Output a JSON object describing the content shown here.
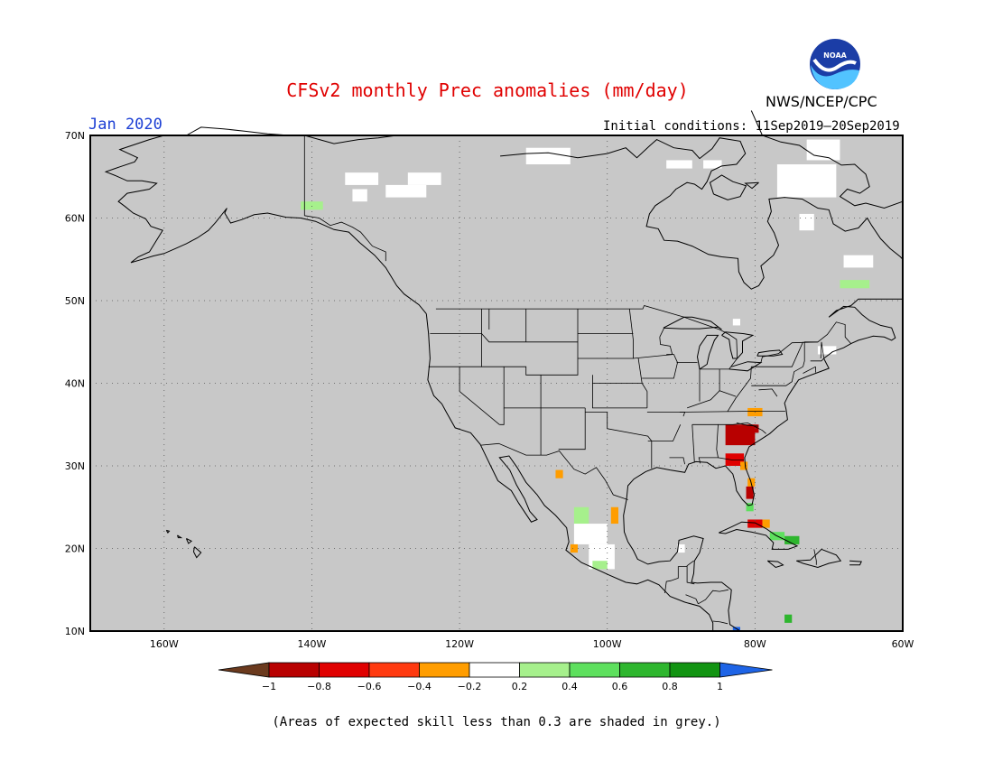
{
  "title": "CFSv2 monthly Prec anomalies (mm/day)",
  "month": "Jan 2020",
  "agency": "NWS/NCEP/CPC",
  "initial_conditions": "Initial conditions: 11Sep2019–20Sep2019",
  "footnote": "(Areas of expected skill less than 0.3 are shaded in grey.)",
  "logo_text": "NOAA",
  "map": {
    "lon_range": [
      -170,
      -60
    ],
    "lat_range": [
      10,
      70
    ],
    "background_color": "#c8c8c8",
    "grid": "dotted",
    "lat_ticks": [
      {
        "value": 70,
        "label": "70N"
      },
      {
        "value": 60,
        "label": "60N"
      },
      {
        "value": 50,
        "label": "50N"
      },
      {
        "value": 40,
        "label": "40N"
      },
      {
        "value": 30,
        "label": "30N"
      },
      {
        "value": 20,
        "label": "20N"
      },
      {
        "value": 10,
        "label": "10N"
      }
    ],
    "lon_ticks": [
      {
        "value": -160,
        "label": "160W"
      },
      {
        "value": -140,
        "label": "140W"
      },
      {
        "value": -120,
        "label": "120W"
      },
      {
        "value": -100,
        "label": "100W"
      },
      {
        "value": -80,
        "label": "80W"
      },
      {
        "value": -60,
        "label": "60W"
      }
    ]
  },
  "colorbar": {
    "labels": [
      "−1",
      "−0.8",
      "−0.6",
      "−0.4",
      "−0.2",
      "0.2",
      "0.4",
      "0.6",
      "0.8",
      "1"
    ],
    "colors": [
      "#6b3a1e",
      "#b80000",
      "#e00000",
      "#ff3a10",
      "#ff9d00",
      "#ffffff",
      "#a6f08c",
      "#5ee05e",
      "#2eb62e",
      "#129412",
      "#1e64e6"
    ]
  },
  "anomaly_cells": [
    {
      "lon": -135.5,
      "lat": 64.0,
      "w": 4.5,
      "h": 1.5,
      "color": "#ffffff"
    },
    {
      "lon": -134.5,
      "lat": 62.0,
      "w": 2.0,
      "h": 1.5,
      "color": "#ffffff"
    },
    {
      "lon": -127.0,
      "lat": 64.0,
      "w": 4.5,
      "h": 1.5,
      "color": "#ffffff"
    },
    {
      "lon": -130.0,
      "lat": 62.5,
      "w": 5.5,
      "h": 1.5,
      "color": "#ffffff"
    },
    {
      "lon": -111.0,
      "lat": 66.5,
      "w": 6.0,
      "h": 2.0,
      "color": "#ffffff"
    },
    {
      "lon": -92.0,
      "lat": 66.0,
      "w": 3.5,
      "h": 1.0,
      "color": "#ffffff"
    },
    {
      "lon": -87.0,
      "lat": 66.0,
      "w": 2.5,
      "h": 1.0,
      "color": "#ffffff"
    },
    {
      "lon": -77.0,
      "lat": 62.5,
      "w": 8.0,
      "h": 4.0,
      "color": "#ffffff"
    },
    {
      "lon": -73.0,
      "lat": 67.0,
      "w": 4.5,
      "h": 2.5,
      "color": "#ffffff"
    },
    {
      "lon": -74.0,
      "lat": 58.5,
      "w": 2.0,
      "h": 2.0,
      "color": "#ffffff"
    },
    {
      "lon": -68.0,
      "lat": 54.0,
      "w": 4.0,
      "h": 1.5,
      "color": "#ffffff"
    },
    {
      "lon": -71.5,
      "lat": 43.5,
      "w": 2.5,
      "h": 1.0,
      "color": "#ffffff"
    },
    {
      "lon": -83.0,
      "lat": 47.0,
      "w": 1.0,
      "h": 0.8,
      "color": "#ffffff"
    },
    {
      "lon": -141.5,
      "lat": 61.0,
      "w": 3.0,
      "h": 1.0,
      "color": "#a6f08c"
    },
    {
      "lon": -68.5,
      "lat": 51.5,
      "w": 4.0,
      "h": 1.0,
      "color": "#a6f08c"
    },
    {
      "lon": -81.0,
      "lat": 36.0,
      "w": 2.0,
      "h": 1.0,
      "color": "#ff9d00"
    },
    {
      "lon": -84.0,
      "lat": 32.5,
      "w": 4.0,
      "h": 2.5,
      "color": "#b80000"
    },
    {
      "lon": -81.5,
      "lat": 34.0,
      "w": 2.0,
      "h": 1.0,
      "color": "#b80000"
    },
    {
      "lon": -84.0,
      "lat": 30.0,
      "w": 2.5,
      "h": 1.5,
      "color": "#e00000"
    },
    {
      "lon": -82.0,
      "lat": 29.5,
      "w": 1.0,
      "h": 1.0,
      "color": "#ff9d00"
    },
    {
      "lon": -81.0,
      "lat": 27.5,
      "w": 1.0,
      "h": 1.0,
      "color": "#ff9d00"
    },
    {
      "lon": -81.2,
      "lat": 26.0,
      "w": 1.0,
      "h": 1.5,
      "color": "#b80000"
    },
    {
      "lon": -81.2,
      "lat": 24.5,
      "w": 1.0,
      "h": 1.0,
      "color": "#5ee05e"
    },
    {
      "lon": -81.0,
      "lat": 22.5,
      "w": 2.0,
      "h": 1.0,
      "color": "#e00000"
    },
    {
      "lon": -79.0,
      "lat": 22.5,
      "w": 1.0,
      "h": 1.0,
      "color": "#ff9d00"
    },
    {
      "lon": -78.0,
      "lat": 21.0,
      "w": 2.0,
      "h": 1.0,
      "color": "#5ee05e"
    },
    {
      "lon": -76.0,
      "lat": 20.5,
      "w": 2.0,
      "h": 1.0,
      "color": "#2eb62e"
    },
    {
      "lon": -107.0,
      "lat": 28.5,
      "w": 1.0,
      "h": 1.0,
      "color": "#ff9d00"
    },
    {
      "lon": -99.5,
      "lat": 23.0,
      "w": 1.0,
      "h": 2.0,
      "color": "#ff9d00"
    },
    {
      "lon": -104.5,
      "lat": 23.0,
      "w": 2.0,
      "h": 2.0,
      "color": "#a6f08c"
    },
    {
      "lon": -104.5,
      "lat": 20.5,
      "w": 4.5,
      "h": 2.5,
      "color": "#ffffff"
    },
    {
      "lon": -102.5,
      "lat": 17.5,
      "w": 3.5,
      "h": 3.0,
      "color": "#ffffff"
    },
    {
      "lon": -105.0,
      "lat": 19.5,
      "w": 1.0,
      "h": 1.0,
      "color": "#ff9d00"
    },
    {
      "lon": -102.0,
      "lat": 17.5,
      "w": 2.0,
      "h": 1.0,
      "color": "#a6f08c"
    },
    {
      "lon": -90.5,
      "lat": 19.5,
      "w": 1.0,
      "h": 1.0,
      "color": "#ffffff"
    },
    {
      "lon": -76.0,
      "lat": 11.0,
      "w": 1.0,
      "h": 1.0,
      "color": "#2eb62e"
    },
    {
      "lon": -83.0,
      "lat": 10.0,
      "w": 1.0,
      "h": 0.5,
      "color": "#1e64e6"
    }
  ]
}
